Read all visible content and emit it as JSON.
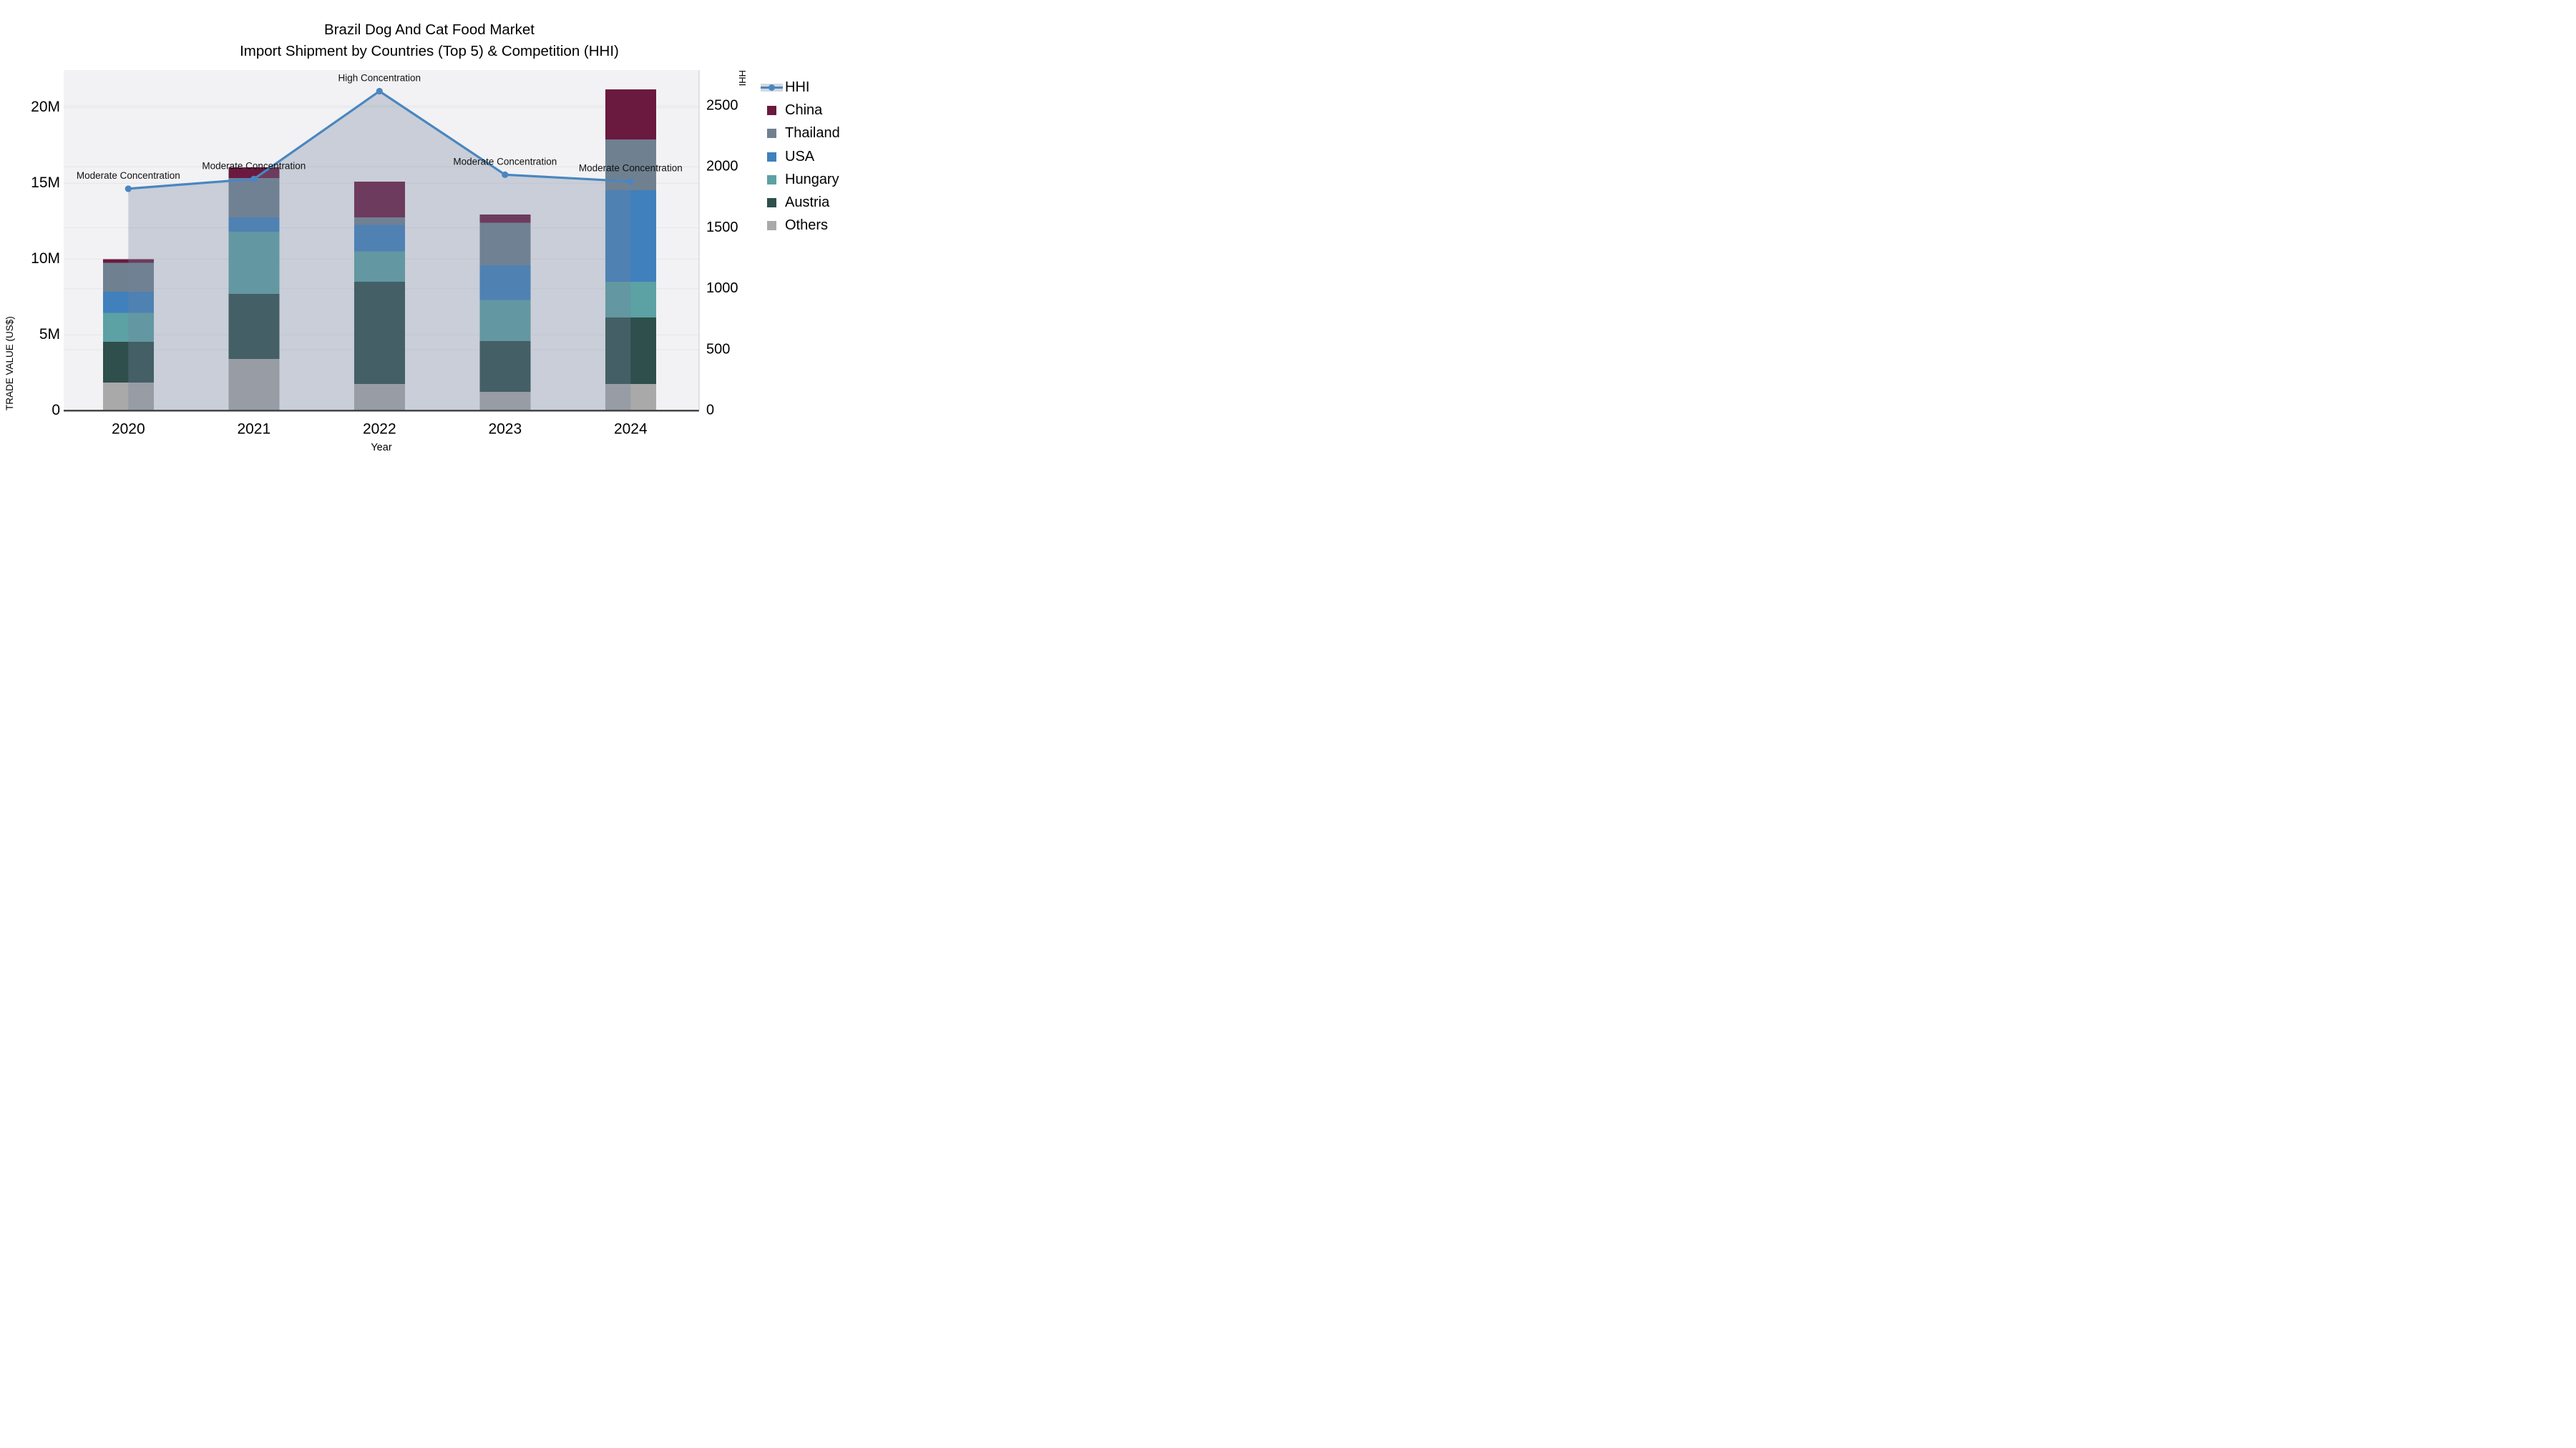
{
  "title": {
    "line1": "Brazil Dog And Cat Food Market",
    "line2": "Import Shipment by Countries (Top 5) & Competition (HHI)"
  },
  "axes": {
    "y_left": {
      "label": "TRADE VALUE (US$)",
      "tick_labels": [
        "0",
        "5M",
        "10M",
        "15M",
        "20M"
      ],
      "tick_values": [
        0,
        5,
        10,
        15,
        20
      ],
      "unit": "million US$"
    },
    "y_right": {
      "label": "HHI",
      "tick_labels": [
        "0",
        "500",
        "1000",
        "1500",
        "2000",
        "2500"
      ],
      "tick_values": [
        0,
        500,
        1000,
        1500,
        2000,
        2500
      ]
    },
    "x": {
      "label": "Year",
      "categories": [
        "2020",
        "2021",
        "2022",
        "2023",
        "2024"
      ]
    }
  },
  "chart_data": {
    "type": "bar+line",
    "categories": [
      "2020",
      "2021",
      "2022",
      "2023",
      "2024"
    ],
    "bar_unit": "M US$",
    "stack_order_bottom_to_top": [
      "Others",
      "Austria",
      "Hungary",
      "USA",
      "Thailand",
      "China"
    ],
    "series": [
      {
        "name": "China",
        "color": "#6a1a3e",
        "values": [
          0.25,
          0.7,
          2.35,
          0.55,
          3.3
        ]
      },
      {
        "name": "Thailand",
        "color": "#6f8090",
        "values": [
          1.9,
          2.6,
          0.5,
          2.8,
          3.35
        ]
      },
      {
        "name": "USA",
        "color": "#3f80bd",
        "values": [
          1.4,
          0.95,
          1.75,
          2.3,
          6.05
        ]
      },
      {
        "name": "Hungary",
        "color": "#5ca1a3",
        "values": [
          1.9,
          4.1,
          2.0,
          2.7,
          2.35
        ]
      },
      {
        "name": "Austria",
        "color": "#2e4f4c",
        "values": [
          2.7,
          4.3,
          6.75,
          3.35,
          4.4
        ]
      },
      {
        "name": "Others",
        "color": "#a9a9a9",
        "values": [
          1.85,
          3.4,
          1.75,
          1.25,
          1.75
        ]
      }
    ],
    "totals": [
      10.0,
      16.05,
      15.1,
      12.95,
      21.2
    ],
    "hhi": {
      "name": "HHI",
      "line_color": "#4a86c0",
      "area_fill": "rgba(114,132,160,0.32)",
      "values": [
        1820,
        1900,
        2620,
        1935,
        1880
      ]
    },
    "annotations": [
      {
        "category": "2020",
        "text": "Moderate Concentration"
      },
      {
        "category": "2021",
        "text": "Moderate Concentration"
      },
      {
        "category": "2022",
        "text": "High Concentration"
      },
      {
        "category": "2023",
        "text": "Moderate Concentration"
      },
      {
        "category": "2024",
        "text": "Moderate Concentration"
      }
    ],
    "layout_hints": {
      "plot_bg": "#f2f2f4",
      "grid_color": "#e5e5e9",
      "axis_line_color": "#3e3e3e",
      "legend_position": "top-right-outside",
      "grid": true
    }
  },
  "legend": {
    "items": [
      {
        "id": "hhi",
        "label": "HHI",
        "type": "line",
        "color": "#4a86c0"
      },
      {
        "id": "china",
        "label": "China",
        "type": "square",
        "color": "#6a1a3e"
      },
      {
        "id": "thailand",
        "label": "Thailand",
        "type": "square",
        "color": "#6f8090"
      },
      {
        "id": "usa",
        "label": "USA",
        "type": "square",
        "color": "#3f80bd"
      },
      {
        "id": "hungary",
        "label": "Hungary",
        "type": "square",
        "color": "#5ca1a3"
      },
      {
        "id": "austria",
        "label": "Austria",
        "type": "square",
        "color": "#2e4f4c"
      },
      {
        "id": "others",
        "label": "Others",
        "type": "square",
        "color": "#a9a9a9"
      }
    ]
  }
}
